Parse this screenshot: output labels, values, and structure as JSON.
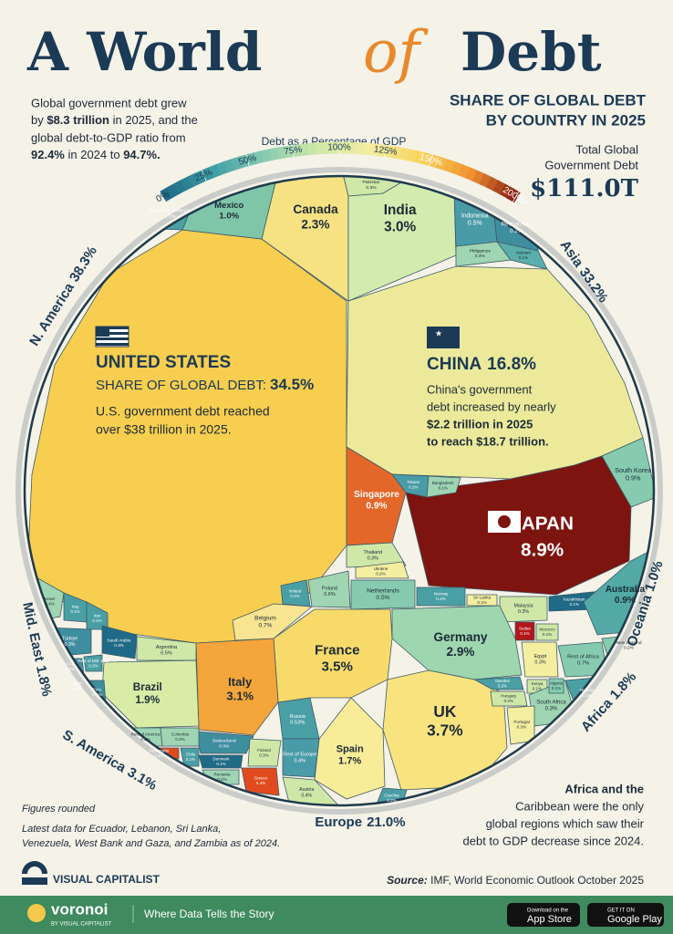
{
  "chart_data": {
    "type": "voronoi",
    "title_parts": [
      "A World",
      "of",
      "Debt"
    ],
    "subtitle": [
      "SHARE OF GLOBAL DEBT",
      "BY COUNTRY IN 2025"
    ],
    "intro": [
      "Global government debt grew",
      "by ",
      "$8.3 trillion",
      " in 2025, and the",
      "global debt-to-GDP ratio from",
      "92.4%",
      " in 2024 to ",
      "94.7%."
    ],
    "total": {
      "label": [
        "Total Global",
        "Government Debt"
      ],
      "value": 111.0,
      "value_label": "$111.0T"
    },
    "legend": {
      "title": "Debt as a Percentage of GDP",
      "ticks": [
        {
          "value": 0,
          "label": "0%"
        },
        {
          "value": 25,
          "label": "25%"
        },
        {
          "value": 50,
          "label": "50%"
        },
        {
          "value": 75,
          "label": "75%"
        },
        {
          "value": 100,
          "label": "100%"
        },
        {
          "value": 125,
          "label": "125%"
        },
        {
          "value": 150,
          "label": "150%"
        },
        {
          "value": 200,
          "label": "200%+"
        }
      ],
      "colors": [
        "#1f6a86",
        "#3f9ea6",
        "#86cbb0",
        "#cfe8a8",
        "#f4eea0",
        "#f9d45a",
        "#f0902f",
        "#7a1010"
      ]
    },
    "share_label": "SHARE OF GLOBAL DEBT:",
    "us_note": [
      "U.S. government debt reached",
      "over $38 trillion in 2025."
    ],
    "china_note": [
      "China's government",
      "debt increased by nearly",
      "$2.2 trillion in 2025",
      "to reach $18.7 trillion."
    ],
    "africa_note": [
      "Africa and the",
      "Caribbean were the only",
      "global regions which saw their",
      "debt to GDP decrease since 2024."
    ],
    "notes": [
      "Figures rounded",
      "Latest data for Ecuador, Lebanon, Sri Lanka,",
      "Venezuela, West Bank and Gaza, and Zambia as of 2024."
    ],
    "source": [
      "Source:",
      "IMF, World Economic Outlook October 2025"
    ],
    "regions": [
      {
        "name": "N. America",
        "value": 38.3,
        "value_label": "38.3%"
      },
      {
        "name": "Asia",
        "value": 33.2,
        "value_label": "33.2%"
      },
      {
        "name": "Oceania",
        "value": 1.0,
        "value_label": "1.0%"
      },
      {
        "name": "Africa",
        "value": 1.8,
        "value_label": "1.8%"
      },
      {
        "name": "Europe",
        "value": 21.0,
        "value_label": "21.0%"
      },
      {
        "name": "S. America",
        "value": 3.1,
        "value_label": "3.1%"
      },
      {
        "name": "Mid. East",
        "value": 1.8,
        "value_label": "1.8%"
      }
    ],
    "cells": [
      {
        "name": "UNITED STATES",
        "value": 34.5,
        "value_label": "34.5%",
        "color": "#f7ce4f"
      },
      {
        "name": "Canada",
        "value": 2.3,
        "value_label": "2.3%",
        "color": "#f6e283"
      },
      {
        "name": "Mexico",
        "value": 1.0,
        "value_label": "1.0%",
        "color": "#7fc6a9"
      },
      {
        "name": "Rest of N. America",
        "value": 0.3,
        "value_label": "0.3%",
        "color": "#4a9fa5"
      },
      {
        "name": "Pakistan",
        "value": 0.3,
        "value_label": "0.3%",
        "color": "#cfe8a8"
      },
      {
        "name": "India",
        "value": 3.0,
        "value_label": "3.0%",
        "color": "#d3ebae"
      },
      {
        "name": "Indonesia",
        "value": 0.5,
        "value_label": "0.5%",
        "color": "#4a9ba8"
      },
      {
        "name": "Rest of Asia",
        "value": 0.2,
        "value_label": "0.2%",
        "color": "#3f8ea0"
      },
      {
        "name": "Philippines",
        "value": 0.3,
        "value_label": "0.3%",
        "color": "#9fd5b2"
      },
      {
        "name": "Vietnam",
        "value": 0.1,
        "value_label": "0.1%",
        "color": "#5aaeab"
      },
      {
        "name": "CHINA",
        "value": 16.8,
        "value_label": "16.8%",
        "color": "#ecea9a"
      },
      {
        "name": "South Korea",
        "value": 0.9,
        "value_label": "0.9%",
        "color": "#86cbb0"
      },
      {
        "name": "JAPAN",
        "value": 8.9,
        "value_label": "8.9%",
        "color": "#7e1410"
      },
      {
        "name": "Singapore",
        "value": 0.9,
        "value_label": "0.9%",
        "color": "#e4672a"
      },
      {
        "name": "Taiwan",
        "value": 0.2,
        "value_label": "0.2%",
        "color": "#4a9ba8"
      },
      {
        "name": "Bangladesh",
        "value": 0.1,
        "value_label": "0.1%",
        "color": "#9fd5b2"
      },
      {
        "name": "Thailand",
        "value": 0.3,
        "value_label": "0.3%",
        "color": "#cfe8a8"
      },
      {
        "name": "Sri Lanka",
        "value": 0.1,
        "value_label": "0.1%",
        "color": "#f4eea0"
      },
      {
        "name": "Malaysia",
        "value": 0.3,
        "value_label": "0.3%",
        "color": "#cfe8a8"
      },
      {
        "name": "Kazakhstan",
        "value": 0.1,
        "value_label": "0.1%",
        "color": "#1f6a86"
      },
      {
        "name": "Australia",
        "value": 0.9,
        "value_label": "0.9%",
        "color": "#52a9a6"
      },
      {
        "name": "New Zealand",
        "value": 0.2,
        "value_label": "0.2%",
        "color": "#86cbb0"
      },
      {
        "name": "Rest of Africa",
        "value": 0.7,
        "value_label": "0.7%",
        "color": "#86cbb0"
      },
      {
        "name": "Egypt",
        "value": 0.3,
        "value_label": "0.3%",
        "color": "#f4eea0"
      },
      {
        "name": "Sudan",
        "value": 0.1,
        "value_label": "0.1%",
        "color": "#b3161a"
      },
      {
        "name": "Morocco",
        "value": 0.1,
        "value_label": "0.1%",
        "color": "#cfe8a8"
      },
      {
        "name": "Kenya",
        "value": 0.1,
        "value_label": "0.1%",
        "color": "#cfe8a8"
      },
      {
        "name": "South Africa",
        "value": 0.3,
        "value_label": "0.3%",
        "color": "#9fd5b2"
      },
      {
        "name": "Nigeria",
        "value": 0.1,
        "value_label": "0.1%",
        "color": "#4a9fa5"
      },
      {
        "name": "Algeria",
        "value": 0.1,
        "value_label": "0.1%",
        "color": "#86cbb0"
      },
      {
        "name": "Germany",
        "value": 2.9,
        "value_label": "2.9%",
        "color": "#9ed6b0"
      },
      {
        "name": "France",
        "value": 3.5,
        "value_label": "3.5%",
        "color": "#f8da6a"
      },
      {
        "name": "UK",
        "value": 3.7,
        "value_label": "3.7%",
        "color": "#f9e37e"
      },
      {
        "name": "Italy",
        "value": 3.1,
        "value_label": "3.1%",
        "color": "#f4a53a"
      },
      {
        "name": "Spain",
        "value": 1.7,
        "value_label": "1.7%",
        "color": "#f8ec98"
      },
      {
        "name": "Belgium",
        "value": 0.7,
        "value_label": "0.7%",
        "color": "#f7e592"
      },
      {
        "name": "Netherlands",
        "value": 0.5,
        "value_label": "0.5%",
        "color": "#86cbb0"
      },
      {
        "name": "Poland",
        "value": 0.6,
        "value_label": "0.6%",
        "color": "#9fd5b2"
      },
      {
        "name": "Ireland",
        "value": 0.2,
        "value_label": "0.2%",
        "color": "#4a9fa5"
      },
      {
        "name": "Ukraine",
        "value": 0.2,
        "value_label": "0.2%",
        "color": "#f4eea0"
      },
      {
        "name": "Norway",
        "value": 0.2,
        "value_label": "0.2%",
        "color": "#4a9fa5"
      },
      {
        "name": "Sweden",
        "value": 0.2,
        "value_label": "0.2%",
        "color": "#4a9fa5"
      },
      {
        "name": "Hungary",
        "value": 0.2,
        "value_label": "0.2%",
        "color": "#cfe8a8"
      },
      {
        "name": "Portugal",
        "value": 0.3,
        "value_label": "0.3%",
        "color": "#f4eea0"
      },
      {
        "name": "Russia",
        "value": 0.53,
        "value_label": "0.53%",
        "color": "#4a9fa5"
      },
      {
        "name": "Rest of Europe",
        "value": 0.4,
        "value_label": "0.4%",
        "color": "#4a9ba8"
      },
      {
        "name": "Austria",
        "value": 0.4,
        "value_label": "0.4%",
        "color": "#cfe8a8"
      },
      {
        "name": "Greece",
        "value": 0.4,
        "value_label": "0.4%",
        "color": "#e24a1e"
      },
      {
        "name": "Switzerland",
        "value": 0.3,
        "value_label": "0.3%",
        "color": "#3f8ea0"
      },
      {
        "name": "Finland",
        "value": 0.3,
        "value_label": "0.3%",
        "color": "#cfe8a8"
      },
      {
        "name": "Denmark",
        "value": 0.1,
        "value_label": "0.1%",
        "color": "#1f6a86"
      },
      {
        "name": "Romania",
        "value": 0.2,
        "value_label": "0.2%",
        "color": "#9fd5b2"
      },
      {
        "name": "Czechia",
        "value": 0.2,
        "value_label": "0.2%",
        "color": "#4a9fa5"
      },
      {
        "name": "Israel",
        "value": 0.4,
        "value_label": "0.4%",
        "color": "#9fd5b2"
      },
      {
        "name": "Iraq",
        "value": 0.1,
        "value_label": "0.1%",
        "color": "#4a9fa5"
      },
      {
        "name": "Iran",
        "value": 0.1,
        "value_label": "0.1%",
        "color": "#4a9fa5"
      },
      {
        "name": "Saudi Arabia",
        "value": 0.3,
        "value_label": "0.3%",
        "color": "#1f6a86"
      },
      {
        "name": "Türkiye",
        "value": 0.3,
        "value_label": "0.3%",
        "color": "#3f8ea0"
      },
      {
        "name": "Rest of Mid. East",
        "value": 0.2,
        "value_label": "0.2%",
        "color": "#4a9fa5"
      },
      {
        "name": "UAE",
        "value": 0.2,
        "value_label": "0.2%",
        "color": "#3f8ea0"
      },
      {
        "name": "Qatar",
        "value": 0.1,
        "value_label": "0.1%",
        "color": "#4a9fa5"
      },
      {
        "name": "Argentina",
        "value": 0.5,
        "value_label": "0.5%",
        "color": "#cfe8a8"
      },
      {
        "name": "Brazil",
        "value": 1.9,
        "value_label": "1.9%",
        "color": "#d8eca6"
      },
      {
        "name": "Peru",
        "value": 0.1,
        "value_label": "0.1%",
        "color": "#3f8ea0"
      },
      {
        "name": "Rest of America",
        "value": 0.2,
        "value_label": "0.2%",
        "color": "#9fd5b2"
      },
      {
        "name": "Colombia",
        "value": 0.2,
        "value_label": "0.2%",
        "color": "#9fd5b2"
      },
      {
        "name": "Venezuela",
        "value": 0.1,
        "value_label": "0.1%",
        "color": "#e24a1e"
      },
      {
        "name": "Chile",
        "value": 0.1,
        "value_label": "0.1%",
        "color": "#4a9fa5"
      }
    ]
  },
  "branding": {
    "publisher": "VISUAL CAPITALIST",
    "app": "voronoi",
    "app_sub": "BY VISUAL CAPITALIST",
    "tagline": "Where Data Tells the Story",
    "app_store": [
      "Download on the",
      "App Store"
    ],
    "google_play": [
      "GET IT ON",
      "Google Play"
    ]
  }
}
